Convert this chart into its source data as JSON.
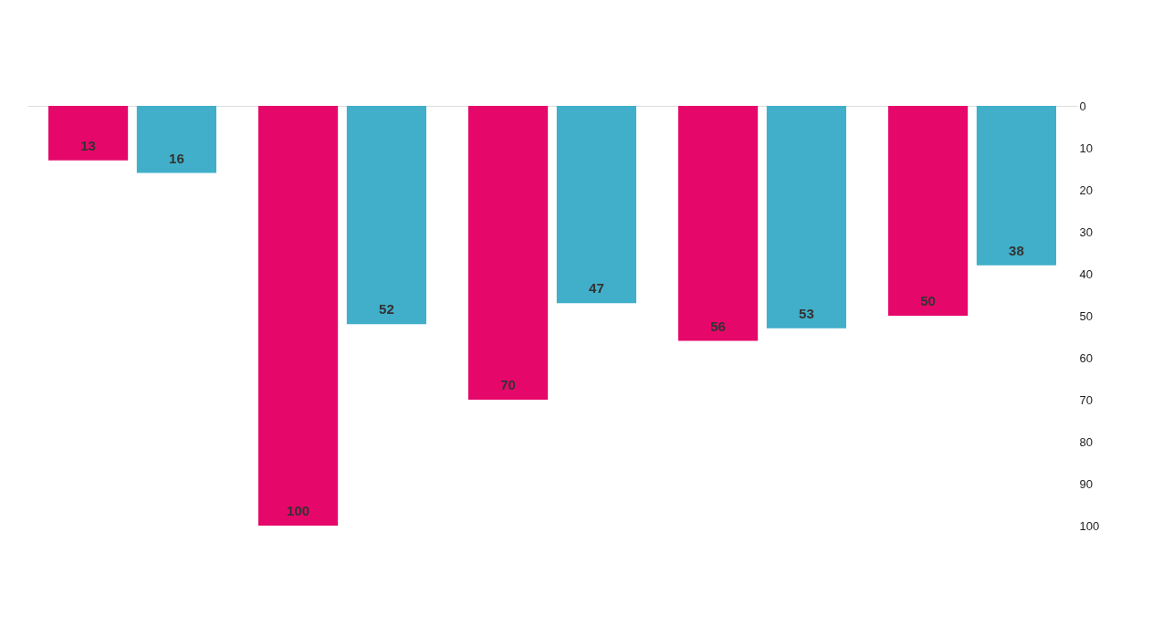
{
  "chart_data": {
    "type": "bar",
    "categories": [
      null,
      null,
      null,
      null,
      null
    ],
    "series": [
      {
        "color": "#e5086a",
        "values": [
          13,
          100,
          70,
          56,
          50
        ]
      },
      {
        "color": "#41afc9",
        "values": [
          16,
          52,
          47,
          53,
          38
        ]
      }
    ],
    "ylim": [
      100,
      0
    ],
    "yticks": [
      0,
      10,
      20,
      30,
      40,
      50,
      60,
      70,
      80,
      90,
      100
    ],
    "grid": false,
    "data_labels": true
  }
}
